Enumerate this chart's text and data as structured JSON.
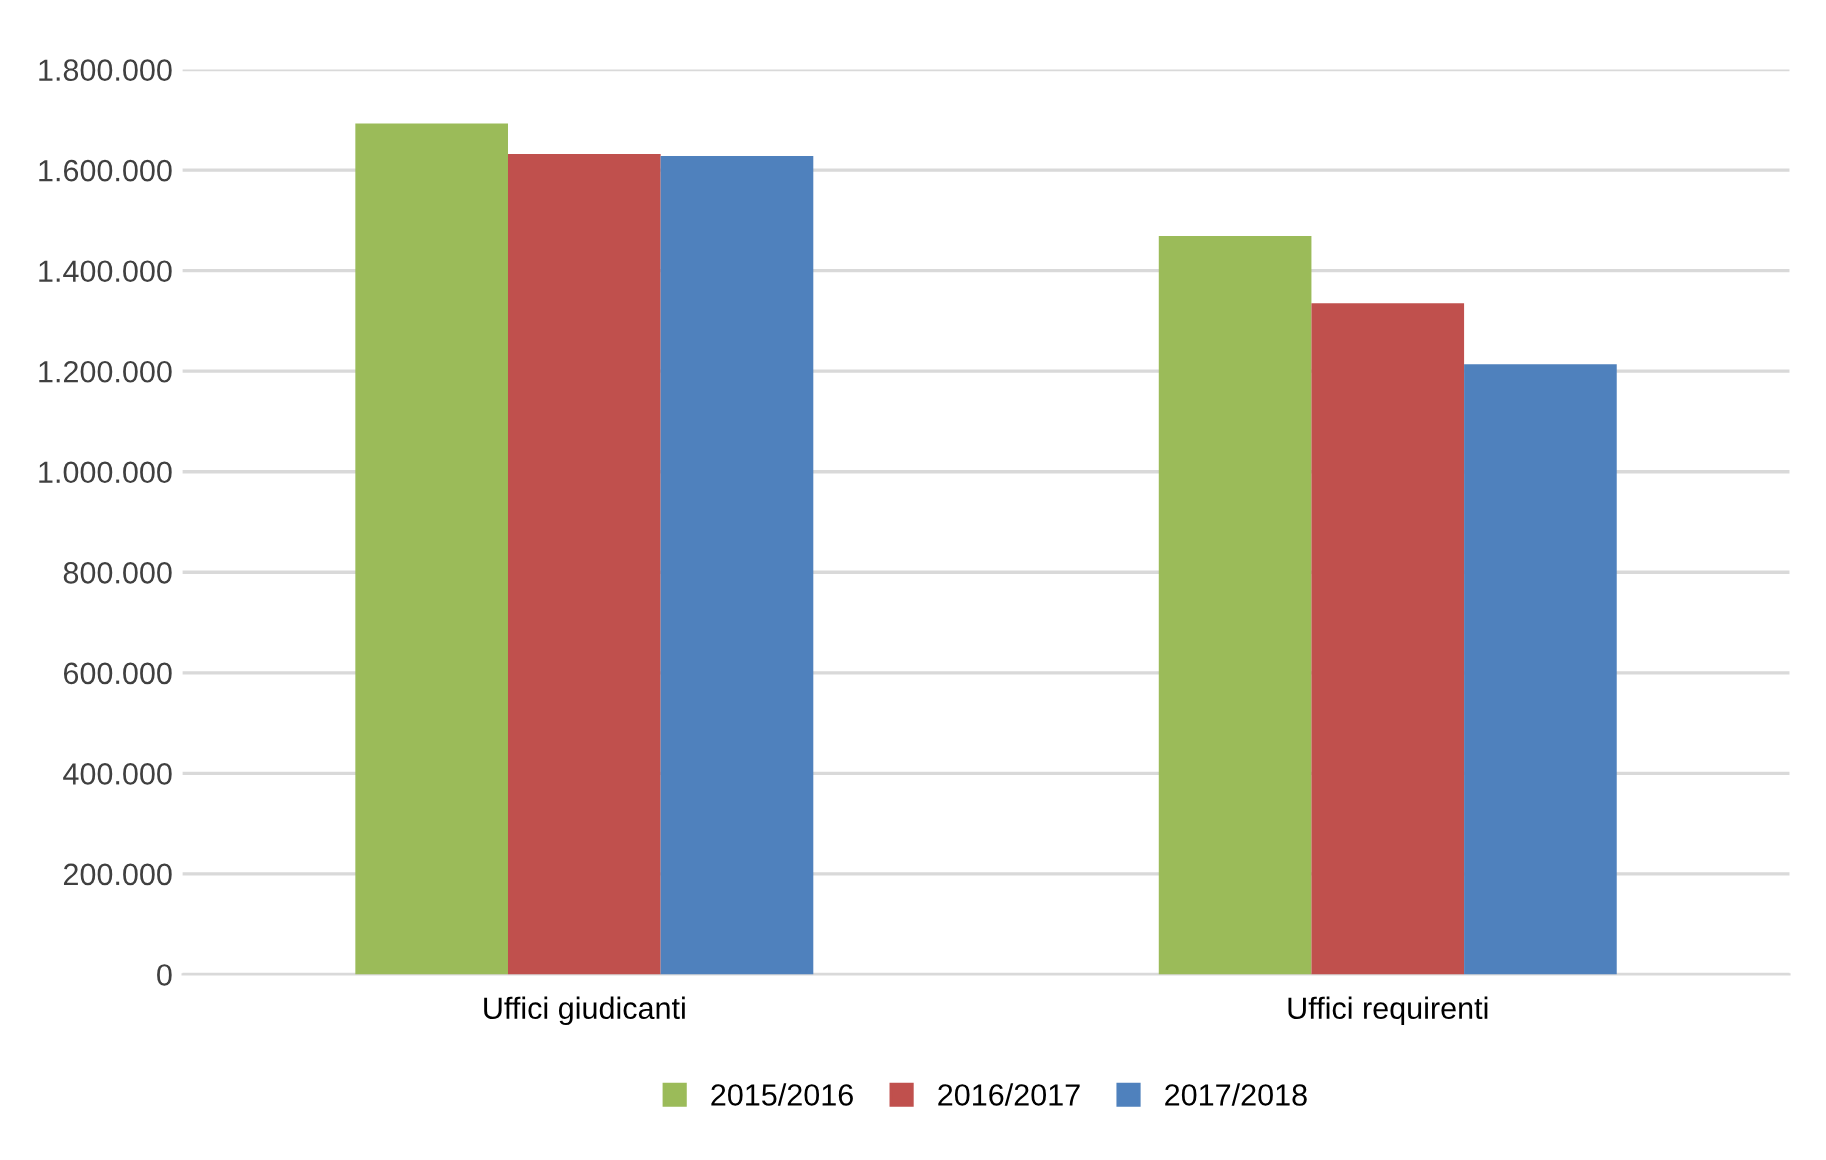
{
  "chart_data": {
    "type": "bar",
    "categories": [
      "Uffici giudicanti",
      "Uffici requirenti"
    ],
    "series": [
      {
        "name": "2015/2016",
        "color": "#9bbb59",
        "values": [
          1693000,
          1469000
        ]
      },
      {
        "name": "2016/2017",
        "color": "#c0504d",
        "values": [
          1632000,
          1335000
        ]
      },
      {
        "name": "2017/2018",
        "color": "#4f81bd",
        "values": [
          1628000,
          1214000
        ]
      }
    ],
    "ylim": [
      0,
      1800000
    ],
    "yticks": [
      {
        "value": 0,
        "label": "0"
      },
      {
        "value": 200000,
        "label": "200.000"
      },
      {
        "value": 400000,
        "label": "400.000"
      },
      {
        "value": 600000,
        "label": "600.000"
      },
      {
        "value": 800000,
        "label": "800.000"
      },
      {
        "value": 1000000,
        "label": "1.000.000"
      },
      {
        "value": 1200000,
        "label": "1.200.000"
      },
      {
        "value": 1400000,
        "label": "1.400.000"
      },
      {
        "value": 1600000,
        "label": "1.600.000"
      },
      {
        "value": 1800000,
        "label": "1.800.000"
      }
    ],
    "grid": "y",
    "legend": "bottom"
  }
}
